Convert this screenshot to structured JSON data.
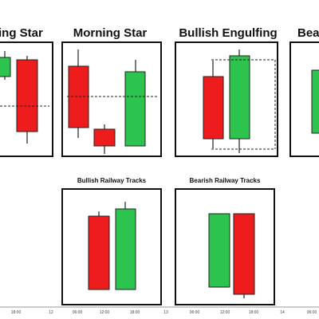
{
  "panels": [
    {
      "title": "ing Star"
    },
    {
      "title": "Morning Star"
    },
    {
      "title": "Bullish Engulfing"
    },
    {
      "title": "Bear"
    },
    {
      "title": "Bullish Railway Tracks"
    },
    {
      "title": "Bearish Railway Tracks"
    }
  ],
  "axis": {
    "labels": [
      "18:00",
      "12",
      "06:00",
      "12:00",
      "18:00",
      "13",
      "06:00",
      "12:00",
      "18:00",
      "14",
      "06:00"
    ]
  }
}
